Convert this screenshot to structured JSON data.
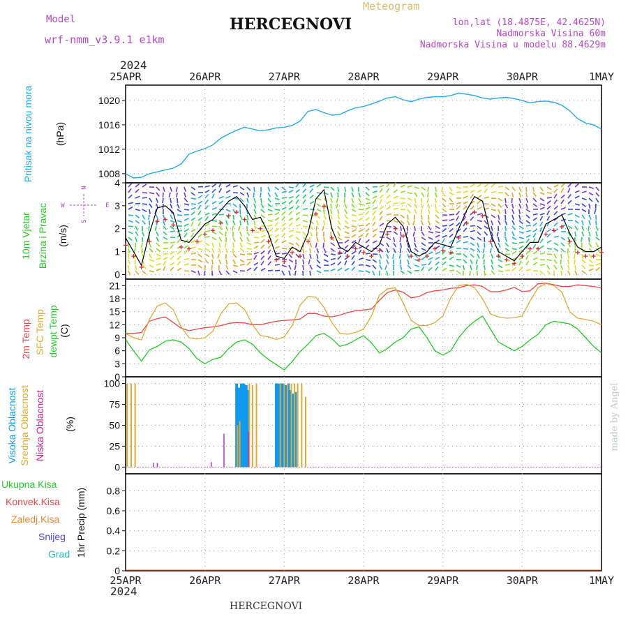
{
  "header": {
    "model_label": "Model",
    "model_value": "wrf-nmm_v3.9.1  e1km",
    "title": "HERCEGNOVI",
    "meteogram": "Meteogram",
    "lonlat": "lon,lat (18.4875E, 42.4625N)",
    "elev": "Nadmorska Visina 60m",
    "elev_model": "Nadmorska Visina u modelu 88.4629m",
    "year_top": "2024",
    "year_bottom": "2024",
    "footer": "HERCEGNOVI",
    "credit": "made by Angel"
  },
  "colors": {
    "pressure": "#22aaee",
    "temp2m": "#ee4444",
    "sfc": "#ddaa33",
    "dewpt": "#22cc22",
    "wind_black": "#000000",
    "wind_red": "#dd2222",
    "cloud_high": "#1199ee",
    "cloud_mid": "#ddaa33",
    "cloud_low": "#bb33cc",
    "magenta_text": "#bb44cc",
    "gold_text": "#ddbb66"
  },
  "chart_data": [
    {
      "type": "line",
      "name": "pressure",
      "x_ticks": [
        "25APR",
        "26APR",
        "27APR",
        "28APR",
        "29APR",
        "30APR",
        "1MAY"
      ],
      "x": [
        0,
        0.1,
        0.2,
        0.3,
        0.4,
        0.5,
        0.6,
        0.7,
        0.8,
        0.9,
        1.0,
        1.1,
        1.2,
        1.3,
        1.4,
        1.5,
        1.6,
        1.7,
        1.8,
        1.9,
        2.0,
        2.1,
        2.2,
        2.3,
        2.4,
        2.5,
        2.6,
        2.7,
        2.8,
        2.9,
        3.0,
        3.1,
        3.2,
        3.3,
        3.4,
        3.5,
        3.6,
        3.7,
        3.8,
        3.9,
        4.0,
        4.1,
        4.2,
        4.3,
        4.4,
        4.5,
        4.6,
        4.7,
        4.8,
        4.9,
        5.0,
        5.1,
        5.2,
        5.3,
        5.4,
        5.5,
        5.6,
        5.7,
        5.8,
        5.9,
        6.0
      ],
      "y": [
        1008.0,
        1007.3,
        1007.4,
        1008.0,
        1008.3,
        1008.6,
        1008.9,
        1009.6,
        1011.2,
        1011.7,
        1012.1,
        1012.7,
        1013.8,
        1014.5,
        1015.1,
        1015.6,
        1015.3,
        1015.0,
        1015.2,
        1015.5,
        1015.6,
        1015.9,
        1016.6,
        1018.2,
        1018.5,
        1018.0,
        1017.6,
        1017.7,
        1018.3,
        1018.8,
        1019.0,
        1019.4,
        1019.9,
        1020.4,
        1020.6,
        1020.1,
        1019.8,
        1020.2,
        1020.5,
        1020.6,
        1020.6,
        1020.8,
        1021.2,
        1021.0,
        1020.8,
        1020.4,
        1020.2,
        1020.4,
        1020.5,
        1020.3,
        1020.0,
        1019.6,
        1019.8,
        1019.9,
        1019.7,
        1019.2,
        1018.3,
        1017.0,
        1016.3,
        1016.0,
        1015.3
      ],
      "ylabel": "(hPa)",
      "y_title": "Pritisak na nivou mora",
      "y_ticks": [
        1008,
        1012,
        1016,
        1020
      ],
      "ylim": [
        1006.5,
        1022.5
      ]
    },
    {
      "type": "line",
      "name": "wind",
      "x_ticks": [
        "25APR",
        "26APR",
        "27APR",
        "28APR",
        "29APR",
        "30APR",
        "1MAY"
      ],
      "x": [
        0,
        0.1,
        0.2,
        0.3,
        0.4,
        0.5,
        0.6,
        0.7,
        0.8,
        0.9,
        1.0,
        1.1,
        1.2,
        1.3,
        1.4,
        1.5,
        1.6,
        1.7,
        1.8,
        1.9,
        2.0,
        2.1,
        2.2,
        2.3,
        2.4,
        2.5,
        2.6,
        2.7,
        2.8,
        2.9,
        3.0,
        3.1,
        3.2,
        3.3,
        3.4,
        3.5,
        3.6,
        3.7,
        3.8,
        3.9,
        4.0,
        4.1,
        4.2,
        4.3,
        4.4,
        4.5,
        4.6,
        4.7,
        4.8,
        4.9,
        5.0,
        5.1,
        5.2,
        5.3,
        5.4,
        5.5,
        5.6,
        5.7,
        5.8,
        5.9,
        6.0
      ],
      "y": [
        1.6,
        1.0,
        0.4,
        1.8,
        2.9,
        3.0,
        2.7,
        1.5,
        1.4,
        1.8,
        2.2,
        2.4,
        2.8,
        3.2,
        3.4,
        3.0,
        2.4,
        2.5,
        1.8,
        0.8,
        0.7,
        1.2,
        1.0,
        1.8,
        3.3,
        3.7,
        2.0,
        1.2,
        1.0,
        1.4,
        1.2,
        1.0,
        1.3,
        2.2,
        2.5,
        2.1,
        1.0,
        0.8,
        1.0,
        1.4,
        1.3,
        1.2,
        2.0,
        2.8,
        3.4,
        3.2,
        1.8,
        1.0,
        0.8,
        0.6,
        1.0,
        1.4,
        1.4,
        2.2,
        2.4,
        2.6,
        1.8,
        1.2,
        1.0,
        1.0,
        1.2
      ],
      "ylabel": "(m/s)",
      "y_title": "10m Vjetar",
      "y_title2": "Brzina i Pravac",
      "compass": {
        "n": "N",
        "w": "W",
        "e": "E",
        "s": "S"
      },
      "y_ticks": [
        0,
        1,
        2,
        3,
        4
      ],
      "ylim": [
        -0.2,
        4.0
      ]
    },
    {
      "type": "line",
      "name": "temperature",
      "x_ticks": [
        "25APR",
        "26APR",
        "27APR",
        "28APR",
        "29APR",
        "30APR",
        "1MAY"
      ],
      "x": [
        0,
        0.1,
        0.2,
        0.3,
        0.4,
        0.5,
        0.6,
        0.7,
        0.8,
        0.9,
        1.0,
        1.1,
        1.2,
        1.3,
        1.4,
        1.5,
        1.6,
        1.7,
        1.8,
        1.9,
        2.0,
        2.1,
        2.2,
        2.3,
        2.4,
        2.5,
        2.6,
        2.7,
        2.8,
        2.9,
        3.0,
        3.1,
        3.2,
        3.3,
        3.4,
        3.5,
        3.6,
        3.7,
        3.8,
        3.9,
        4.0,
        4.1,
        4.2,
        4.3,
        4.4,
        4.5,
        4.6,
        4.7,
        4.8,
        4.9,
        5.0,
        5.1,
        5.2,
        5.3,
        5.4,
        5.5,
        5.6,
        5.7,
        5.8,
        5.9,
        6.0
      ],
      "series": [
        {
          "name": "2m Temp",
          "values": [
            10.0,
            10.0,
            10.2,
            12.8,
            13.4,
            13.8,
            12.5,
            11.2,
            10.6,
            11.0,
            11.3,
            11.5,
            11.8,
            12.3,
            12.5,
            12.4,
            12.0,
            12.0,
            12.4,
            12.8,
            13.0,
            13.1,
            13.3,
            14.6,
            14.6,
            14.0,
            13.8,
            14.2,
            14.8,
            15.2,
            15.4,
            15.6,
            17.6,
            19.4,
            20.0,
            19.5,
            18.2,
            18.5,
            19.4,
            19.8,
            20.0,
            20.4,
            20.5,
            21.0,
            21.2,
            20.8,
            19.6,
            19.6,
            20.0,
            20.6,
            19.6,
            19.8,
            21.4,
            21.6,
            21.2,
            20.8,
            20.8,
            21.2,
            21.0,
            20.8,
            20.5
          ]
        },
        {
          "name": "SFC Temp",
          "values": [
            10.0,
            9.0,
            8.5,
            13.2,
            16.3,
            17.0,
            15.5,
            11.5,
            9.0,
            8.7,
            9.0,
            10.5,
            14.5,
            16.8,
            17.0,
            15.5,
            12.0,
            9.5,
            9.2,
            8.6,
            9.2,
            11.8,
            16.5,
            18.5,
            18.3,
            16.0,
            12.5,
            10.0,
            9.8,
            10.2,
            11.0,
            14.0,
            18.8,
            20.2,
            20.5,
            17.0,
            13.0,
            11.8,
            11.8,
            12.5,
            14.0,
            18.2,
            21.0,
            21.3,
            20.5,
            18.0,
            14.5,
            13.8,
            13.5,
            13.6,
            14.0,
            17.5,
            20.5,
            21.5,
            21.0,
            19.5,
            15.0,
            13.5,
            13.2,
            12.8,
            12.0
          ]
        },
        {
          "name": "dewpt Temp",
          "values": [
            8.6,
            6.0,
            3.6,
            6.2,
            7.0,
            8.2,
            8.5,
            8.0,
            6.5,
            4.2,
            3.0,
            4.0,
            4.5,
            6.5,
            8.0,
            8.5,
            7.5,
            5.5,
            4.0,
            2.8,
            1.6,
            3.5,
            5.8,
            7.5,
            9.5,
            10.0,
            8.8,
            7.0,
            7.5,
            8.5,
            9.5,
            7.8,
            5.5,
            6.5,
            8.0,
            9.0,
            11.0,
            11.5,
            9.0,
            6.0,
            5.0,
            6.0,
            9.0,
            11.2,
            12.8,
            14.0,
            11.0,
            8.0,
            7.0,
            6.0,
            7.0,
            8.5,
            9.8,
            12.0,
            12.8,
            12.5,
            12.2,
            11.0,
            9.0,
            7.0,
            5.5
          ]
        }
      ],
      "y_titles": [
        "2m Temp",
        "SFC Temp",
        "dewpt Temp"
      ],
      "ylabel": "(C)",
      "y_ticks": [
        0,
        3,
        6,
        9,
        12,
        15,
        18,
        21
      ],
      "ylim": [
        0,
        22.5
      ]
    },
    {
      "type": "bar",
      "name": "clouds",
      "x_ticks": [
        "25APR",
        "26APR",
        "27APR",
        "28APR",
        "29APR",
        "30APR",
        "1MAY"
      ],
      "series": [
        {
          "name": "Visoka Oblacnost",
          "x": [
            1.4,
            1.43,
            1.46,
            1.49,
            1.52,
            1.55,
            1.9,
            1.93,
            1.96,
            1.99,
            2.02,
            2.05,
            2.08,
            2.11,
            2.14
          ],
          "values": [
            100,
            95,
            100,
            100,
            98,
            92,
            100,
            100,
            100,
            100,
            98,
            100,
            92,
            88,
            90
          ]
        },
        {
          "name": "Srednja Oblacnost",
          "x": [
            0.02,
            0.07,
            0.12,
            1.41,
            1.44,
            1.56,
            1.6,
            1.65,
            1.95,
            2.0,
            2.04,
            2.09,
            2.13,
            2.17,
            2.22,
            2.27
          ],
          "values": [
            100,
            100,
            100,
            50,
            55,
            100,
            98,
            100,
            100,
            100,
            100,
            100,
            100,
            100,
            100,
            84
          ]
        },
        {
          "name": "Niska Oblacnost",
          "x": [
            0.35,
            0.4,
            1.08,
            1.24,
            1.55
          ],
          "values": [
            5,
            5,
            6,
            40,
            42
          ]
        }
      ],
      "ylabel": "(%)",
      "y_ticks": [
        0,
        25,
        50,
        75,
        100
      ],
      "ylim": [
        -8,
        108
      ]
    },
    {
      "type": "bar",
      "name": "precip",
      "x_ticks": [
        "25APR",
        "26APR",
        "27APR",
        "28APR",
        "29APR",
        "30APR",
        "1MAY"
      ],
      "series": [
        {
          "name": "Ukupna Kisa",
          "values": []
        },
        {
          "name": "Konvek.Kisa",
          "values": []
        },
        {
          "name": "Zaledj.Kisa",
          "values": []
        },
        {
          "name": "Snijeg",
          "values": []
        },
        {
          "name": "Grad",
          "values": []
        }
      ],
      "ylabel": "1hr Precip (mm)",
      "y_ticks": [
        0,
        0.2,
        0.4,
        0.6,
        0.8
      ],
      "y_tick_labels": [
        "0",
        "0.2",
        "0.4",
        "0.6",
        "0.8"
      ],
      "ylim": [
        0,
        0.97
      ]
    }
  ]
}
